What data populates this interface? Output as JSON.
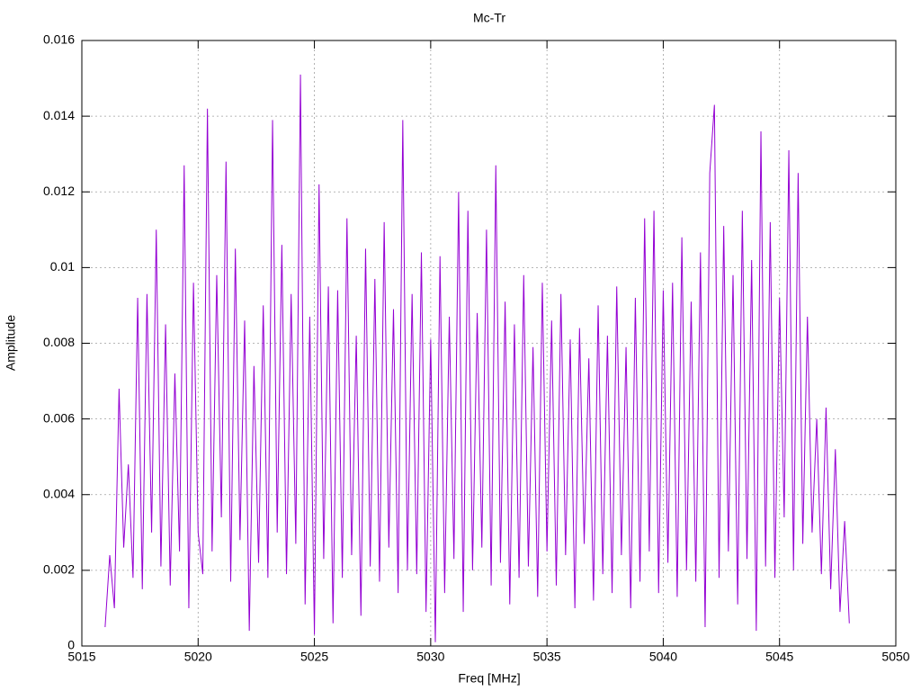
{
  "chart_data": {
    "type": "line",
    "title": "Mc-Tr",
    "x_label": "Freq [MHz]",
    "y_label": "Amplitude",
    "xlim": [
      5015,
      5050
    ],
    "xticks": [
      5015,
      5020,
      5025,
      5030,
      5035,
      5040,
      5045,
      5050
    ],
    "ylim": [
      0,
      0.016
    ],
    "yticks": [
      0,
      0.002,
      0.004,
      0.006,
      0.008,
      0.01,
      0.012,
      0.014,
      0.016
    ],
    "grid": true,
    "x": [
      5016,
      5016.2,
      5016.4,
      5016.6,
      5016.8,
      5017,
      5017.2,
      5017.4,
      5017.6,
      5017.8,
      5018,
      5018.2,
      5018.4,
      5018.6,
      5018.8,
      5019,
      5019.2,
      5019.4,
      5019.6,
      5019.8,
      5020,
      5020.2,
      5020.4,
      5020.6,
      5020.8,
      5021,
      5021.2,
      5021.4,
      5021.6,
      5021.8,
      5022,
      5022.2,
      5022.4,
      5022.6,
      5022.8,
      5023,
      5023.2,
      5023.4,
      5023.6,
      5023.8,
      5024,
      5024.2,
      5024.4,
      5024.6,
      5024.8,
      5025,
      5025.2,
      5025.4,
      5025.6,
      5025.8,
      5026,
      5026.2,
      5026.4,
      5026.6,
      5026.8,
      5027,
      5027.2,
      5027.4,
      5027.6,
      5027.8,
      5028,
      5028.2,
      5028.4,
      5028.6,
      5028.8,
      5029,
      5029.2,
      5029.4,
      5029.6,
      5029.8,
      5030,
      5030.2,
      5030.4,
      5030.6,
      5030.8,
      5031,
      5031.2,
      5031.4,
      5031.6,
      5031.8,
      5032,
      5032.2,
      5032.4,
      5032.6,
      5032.8,
      5033,
      5033.2,
      5033.4,
      5033.6,
      5033.8,
      5034,
      5034.2,
      5034.4,
      5034.6,
      5034.8,
      5035,
      5035.2,
      5035.4,
      5035.6,
      5035.8,
      5036,
      5036.2,
      5036.4,
      5036.6,
      5036.8,
      5037,
      5037.2,
      5037.4,
      5037.6,
      5037.8,
      5038,
      5038.2,
      5038.4,
      5038.6,
      5038.8,
      5039,
      5039.2,
      5039.4,
      5039.6,
      5039.8,
      5040,
      5040.2,
      5040.4,
      5040.6,
      5040.8,
      5041,
      5041.2,
      5041.4,
      5041.6,
      5041.8,
      5042,
      5042.2,
      5042.4,
      5042.6,
      5042.8,
      5043,
      5043.2,
      5043.4,
      5043.6,
      5043.8,
      5044,
      5044.2,
      5044.4,
      5044.6,
      5044.8,
      5045,
      5045.2,
      5045.4,
      5045.6,
      5045.8,
      5046,
      5046.2,
      5046.4,
      5046.6,
      5046.8,
      5047,
      5047.2,
      5047.4,
      5047.6,
      5047.8,
      5048
    ],
    "series": [
      {
        "color": "#9400d3",
        "values": [
          0.0005,
          0.0024,
          0.001,
          0.0068,
          0.0026,
          0.0048,
          0.0018,
          0.0092,
          0.0015,
          0.0093,
          0.003,
          0.011,
          0.0021,
          0.0085,
          0.0016,
          0.0072,
          0.0025,
          0.0127,
          0.001,
          0.0096,
          0.003,
          0.0019,
          0.0142,
          0.0025,
          0.0098,
          0.0034,
          0.0128,
          0.0017,
          0.0105,
          0.0028,
          0.0086,
          0.0004,
          0.0074,
          0.0022,
          0.009,
          0.0018,
          0.0139,
          0.003,
          0.0106,
          0.0019,
          0.0093,
          0.0027,
          0.0151,
          0.0011,
          0.0087,
          0.0003,
          0.0122,
          0.0023,
          0.0095,
          0.0006,
          0.0094,
          0.0018,
          0.0113,
          0.0024,
          0.0082,
          0.0008,
          0.0105,
          0.0021,
          0.0097,
          0.0017,
          0.0112,
          0.0026,
          0.0089,
          0.0014,
          0.0139,
          0.002,
          0.0093,
          0.0019,
          0.0104,
          0.0009,
          0.0081,
          0.0001,
          0.0103,
          0.0014,
          0.0087,
          0.0023,
          0.012,
          0.0009,
          0.0115,
          0.002,
          0.0088,
          0.0026,
          0.011,
          0.0016,
          0.0127,
          0.0022,
          0.0091,
          0.0011,
          0.0085,
          0.0018,
          0.0098,
          0.0021,
          0.0079,
          0.0013,
          0.0096,
          0.0025,
          0.0086,
          0.0016,
          0.0093,
          0.0024,
          0.0081,
          0.001,
          0.0084,
          0.0027,
          0.0076,
          0.0012,
          0.009,
          0.0019,
          0.0082,
          0.0014,
          0.0095,
          0.0024,
          0.0079,
          0.001,
          0.0092,
          0.0017,
          0.0113,
          0.0025,
          0.0115,
          0.0014,
          0.0094,
          0.0022,
          0.0096,
          0.0013,
          0.0108,
          0.002,
          0.0091,
          0.0017,
          0.0104,
          0.0005,
          0.0125,
          0.0143,
          0.0018,
          0.0111,
          0.0025,
          0.0098,
          0.0011,
          0.0115,
          0.0023,
          0.0102,
          0.0004,
          0.0136,
          0.0021,
          0.0112,
          0.0018,
          0.0092,
          0.0034,
          0.0131,
          0.002,
          0.0125,
          0.0027,
          0.0087,
          0.003,
          0.006,
          0.0019,
          0.0063,
          0.0015,
          0.0052,
          0.0009,
          0.0033,
          0.0006
        ]
      }
    ]
  }
}
